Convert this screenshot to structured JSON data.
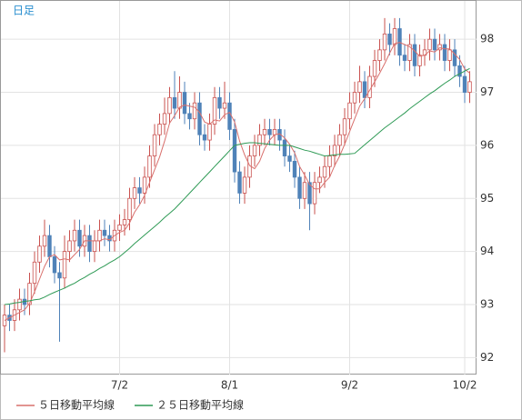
{
  "chart_data": {
    "type": "candlestick",
    "title": "日足",
    "categories": [
      null,
      null,
      null,
      null,
      null,
      null,
      null,
      null,
      null,
      null,
      null,
      null,
      null,
      null,
      null,
      null,
      null,
      null,
      null,
      null,
      null,
      null,
      null,
      "7/2",
      null,
      null,
      null,
      null,
      null,
      null,
      null,
      null,
      null,
      null,
      null,
      null,
      null,
      null,
      null,
      null,
      null,
      null,
      null,
      null,
      null,
      "8/1",
      null,
      null,
      null,
      null,
      null,
      null,
      null,
      null,
      null,
      null,
      null,
      null,
      null,
      null,
      null,
      null,
      null,
      null,
      null,
      null,
      null,
      null,
      null,
      "9/2",
      null,
      null,
      null,
      null,
      null,
      null,
      null,
      null,
      null,
      null,
      null,
      null,
      null,
      null,
      null,
      null,
      null,
      null,
      null,
      null,
      null,
      null,
      "10/2",
      null
    ],
    "open": [
      92.6,
      92.8,
      92.7,
      92.9,
      93.1,
      93.0,
      93.4,
      93.8,
      94.1,
      94.3,
      93.9,
      93.6,
      93.5,
      94.0,
      94.2,
      94.4,
      94.1,
      94.3,
      94.0,
      94.2,
      94.4,
      94.3,
      94.2,
      94.4,
      94.5,
      94.6,
      95.0,
      95.2,
      95.1,
      95.4,
      95.8,
      96.2,
      96.4,
      96.6,
      96.9,
      96.7,
      97.0,
      96.6,
      96.5,
      96.8,
      96.2,
      96.1,
      96.4,
      96.9,
      96.7,
      96.8,
      96.3,
      95.5,
      95.1,
      95.4,
      95.8,
      96.0,
      96.2,
      96.3,
      96.2,
      96.3,
      96.1,
      95.8,
      95.7,
      95.4,
      95.0,
      95.3,
      94.9,
      95.3,
      95.4,
      95.6,
      95.8,
      96.0,
      96.2,
      96.5,
      96.8,
      97.0,
      97.2,
      96.9,
      97.3,
      97.6,
      97.8,
      98.1,
      97.9,
      98.2,
      97.7,
      97.6,
      97.9,
      97.5,
      97.7,
      97.8,
      98.0,
      97.8,
      97.9,
      97.6,
      97.8,
      97.5,
      97.3,
      97.0
    ],
    "high": [
      93.0,
      93.0,
      93.1,
      93.3,
      93.3,
      93.6,
      94.0,
      94.3,
      94.6,
      94.5,
      94.1,
      93.8,
      94.3,
      94.4,
      94.6,
      94.6,
      94.5,
      94.5,
      94.4,
      94.6,
      94.6,
      94.5,
      94.6,
      94.7,
      94.8,
      95.2,
      95.4,
      95.4,
      95.6,
      96.0,
      96.4,
      96.6,
      96.9,
      97.1,
      97.4,
      97.3,
      97.2,
      96.8,
      97.0,
      97.0,
      96.4,
      96.6,
      97.1,
      97.1,
      97.2,
      97.0,
      96.5,
      95.7,
      95.6,
      96.0,
      96.2,
      96.4,
      96.5,
      96.5,
      96.5,
      96.5,
      96.3,
      96.0,
      95.9,
      95.6,
      95.5,
      95.5,
      95.5,
      95.6,
      95.8,
      96.0,
      96.2,
      96.4,
      96.7,
      97.0,
      97.2,
      97.5,
      97.4,
      97.5,
      97.8,
      98.0,
      98.4,
      98.3,
      98.4,
      98.4,
      97.9,
      98.1,
      98.1,
      97.9,
      98.0,
      98.2,
      98.2,
      98.1,
      98.1,
      98.0,
      98.0,
      97.7,
      97.5,
      97.4
    ],
    "low": [
      92.1,
      92.5,
      92.5,
      92.7,
      92.8,
      92.8,
      93.2,
      93.6,
      93.9,
      93.7,
      93.4,
      92.3,
      93.3,
      93.8,
      94.0,
      93.9,
      93.9,
      93.8,
      93.8,
      94.0,
      94.1,
      94.0,
      94.0,
      94.2,
      94.3,
      94.4,
      94.8,
      94.9,
      94.9,
      95.2,
      95.6,
      96.0,
      96.2,
      96.4,
      96.5,
      96.5,
      96.4,
      96.3,
      96.3,
      96.0,
      95.9,
      95.9,
      96.2,
      96.5,
      96.5,
      96.1,
      95.3,
      94.9,
      94.9,
      95.2,
      95.6,
      95.8,
      96.0,
      96.0,
      96.0,
      95.9,
      95.6,
      95.5,
      95.2,
      94.8,
      94.8,
      94.4,
      94.7,
      95.1,
      95.2,
      95.4,
      95.6,
      95.8,
      96.0,
      96.3,
      96.6,
      96.8,
      96.7,
      96.7,
      97.1,
      97.4,
      97.6,
      97.7,
      97.7,
      97.5,
      97.4,
      97.4,
      97.3,
      97.3,
      97.5,
      97.6,
      97.6,
      97.6,
      97.4,
      97.4,
      97.3,
      97.1,
      96.8,
      96.8
    ],
    "close": [
      92.8,
      92.7,
      92.9,
      93.1,
      93.0,
      93.4,
      93.8,
      94.1,
      94.3,
      93.9,
      93.6,
      93.5,
      94.0,
      94.2,
      94.4,
      94.1,
      94.3,
      94.0,
      94.2,
      94.4,
      94.3,
      94.2,
      94.4,
      94.5,
      94.6,
      95.0,
      95.2,
      95.1,
      95.4,
      95.8,
      96.2,
      96.4,
      96.6,
      96.9,
      96.7,
      97.0,
      96.6,
      96.5,
      96.8,
      96.2,
      96.1,
      96.4,
      96.9,
      96.7,
      96.8,
      96.3,
      95.5,
      95.1,
      95.4,
      95.8,
      96.0,
      96.2,
      96.3,
      96.2,
      96.3,
      96.1,
      95.8,
      95.7,
      95.4,
      95.0,
      95.3,
      94.9,
      95.3,
      95.4,
      95.6,
      95.8,
      96.0,
      96.2,
      96.5,
      96.8,
      97.0,
      97.2,
      96.9,
      97.3,
      97.6,
      97.8,
      98.1,
      97.9,
      98.2,
      97.7,
      97.6,
      97.9,
      97.5,
      97.7,
      97.8,
      98.0,
      97.8,
      97.9,
      97.6,
      97.8,
      97.5,
      97.3,
      97.0,
      97.2
    ],
    "up_color": "#c9504e",
    "down_color": "#4f82b8",
    "series": [
      {
        "name": "５日移動平均線",
        "color": "#d9706d",
        "values": [
          92.7,
          92.75,
          92.8,
          92.85,
          92.9,
          93.02,
          93.24,
          93.48,
          93.72,
          93.9,
          93.94,
          93.84,
          93.86,
          93.84,
          93.94,
          94.04,
          94.2,
          94.2,
          94.2,
          94.2,
          94.24,
          94.22,
          94.3,
          94.36,
          94.4,
          94.54,
          94.74,
          94.88,
          95.06,
          95.3,
          95.54,
          95.78,
          96.08,
          96.42,
          96.56,
          96.72,
          96.76,
          96.74,
          96.72,
          96.62,
          96.44,
          96.4,
          96.48,
          96.46,
          96.58,
          96.62,
          96.44,
          96.08,
          95.82,
          95.62,
          95.56,
          95.7,
          95.94,
          96.1,
          96.2,
          96.22,
          96.14,
          96.02,
          95.86,
          95.6,
          95.44,
          95.26,
          95.18,
          95.18,
          95.3,
          95.4,
          95.62,
          95.8,
          96.02,
          96.26,
          96.5,
          96.74,
          96.88,
          97.04,
          97.2,
          97.36,
          97.54,
          97.74,
          97.92,
          97.94,
          97.9,
          97.86,
          97.78,
          97.68,
          97.7,
          97.78,
          97.76,
          97.84,
          97.82,
          97.82,
          97.72,
          97.62,
          97.44,
          97.36
        ]
      },
      {
        "name": "２５日移動平均線",
        "color": "#2e9a55",
        "values": [
          93.0,
          93.01,
          93.03,
          93.04,
          93.06,
          93.07,
          93.09,
          93.1,
          93.14,
          93.19,
          93.23,
          93.27,
          93.31,
          93.36,
          93.4,
          93.46,
          93.51,
          93.57,
          93.62,
          93.68,
          93.73,
          93.79,
          93.84,
          93.9,
          93.98,
          94.06,
          94.15,
          94.23,
          94.31,
          94.39,
          94.47,
          94.55,
          94.64,
          94.72,
          94.8,
          94.9,
          95.0,
          95.1,
          95.2,
          95.3,
          95.4,
          95.5,
          95.6,
          95.7,
          95.8,
          95.9,
          96.0,
          96.02,
          96.04,
          96.05,
          96.05,
          96.04,
          96.03,
          96.02,
          96.01,
          96.0,
          96.0,
          96.0,
          95.97,
          95.94,
          95.91,
          95.89,
          95.86,
          95.83,
          95.8,
          95.81,
          95.82,
          95.83,
          95.83,
          95.84,
          95.85,
          95.93,
          96.01,
          96.09,
          96.17,
          96.25,
          96.33,
          96.4,
          96.47,
          96.54,
          96.61,
          96.69,
          96.76,
          96.83,
          96.9,
          96.97,
          97.03,
          97.1,
          97.17,
          97.23,
          97.3,
          97.35,
          97.4,
          97.45
        ]
      }
    ],
    "ylim": [
      91.68,
      98.74
    ],
    "yticks": [
      92,
      93,
      94,
      95,
      96,
      97,
      98
    ],
    "grid": true
  }
}
